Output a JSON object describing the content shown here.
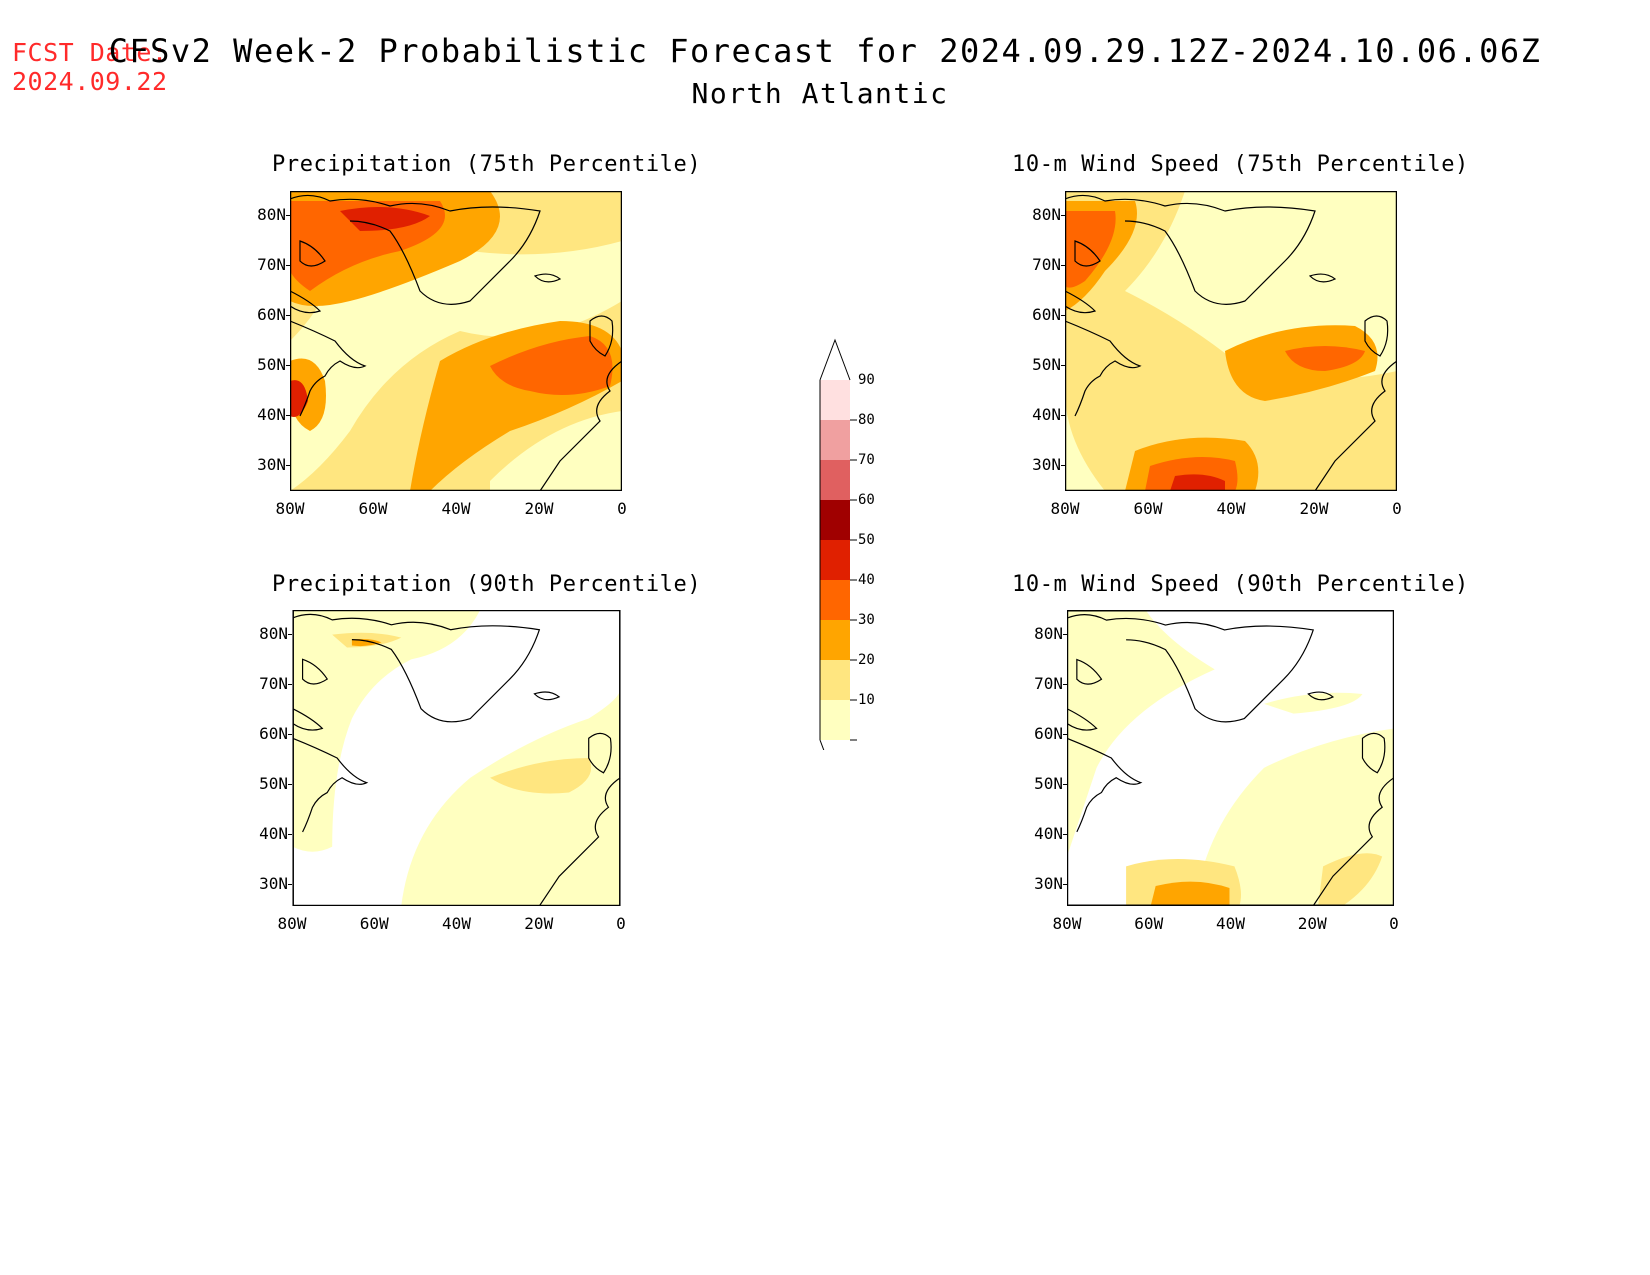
{
  "header": {
    "fcst_label": "FCST Date:",
    "fcst_date": "2024.09.22",
    "title": "CFSv2 Week-2 Probabilistic Forecast for 2024.09.29.12Z-2024.10.06.06Z",
    "subtitle": "North Atlantic"
  },
  "panels": [
    {
      "id": "precip75",
      "title": "Precipitation (75th Percentile)"
    },
    {
      "id": "wind75",
      "title": "10-m Wind Speed (75th Percentile)"
    },
    {
      "id": "precip90",
      "title": "Precipitation (90th Percentile)"
    },
    {
      "id": "wind90",
      "title": "10-m Wind Speed (90th Percentile)"
    }
  ],
  "axes": {
    "lat_ticks": [
      "80N",
      "70N",
      "60N",
      "50N",
      "40N",
      "30N"
    ],
    "lon_ticks": [
      "80W",
      "60W",
      "40W",
      "20W",
      "0"
    ]
  },
  "colorbar": {
    "levels": [
      "10",
      "20",
      "30",
      "40",
      "50",
      "60",
      "70",
      "80",
      "90"
    ],
    "colors": [
      "#ffffc0",
      "#ffe680",
      "#ffa500",
      "#ff6600",
      "#e02000",
      "#a00000",
      "#e06060",
      "#f0a0a0",
      "#ffe0e0"
    ]
  }
}
